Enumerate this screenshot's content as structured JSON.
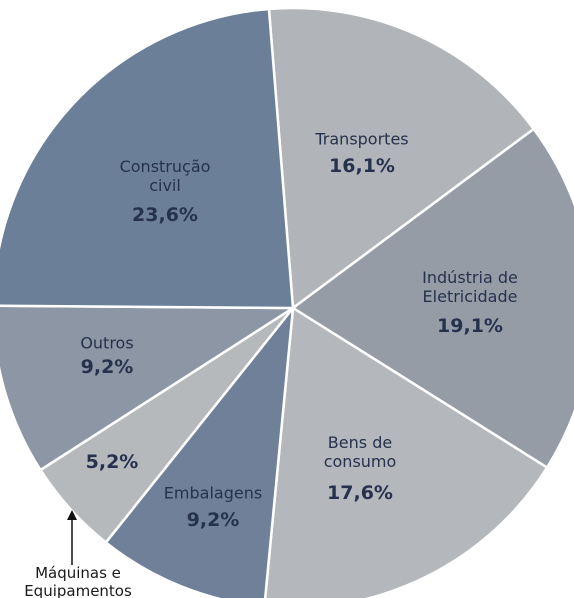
{
  "chart_data": {
    "type": "pie",
    "categories": [
      "Transportes",
      "Indústria de\nEletricidade",
      "Bens de\nconsumo",
      "Embalagens",
      "Máquinas e\nEquipamentos",
      "Outros",
      "Construção\ncivil"
    ],
    "values": [
      16.1,
      19.1,
      17.6,
      9.2,
      5.2,
      9.2,
      23.6
    ],
    "value_labels": [
      "16,1%",
      "19,1%",
      "17,6%",
      "9,2%",
      "5,2%",
      "9,2%",
      "23,6%"
    ],
    "colors": [
      "#b1b4b8",
      "#959ca6",
      "#b4b7bb",
      "#6f8098",
      "#b6b9bc",
      "#8c96a4",
      "#6b7f99"
    ]
  }
}
